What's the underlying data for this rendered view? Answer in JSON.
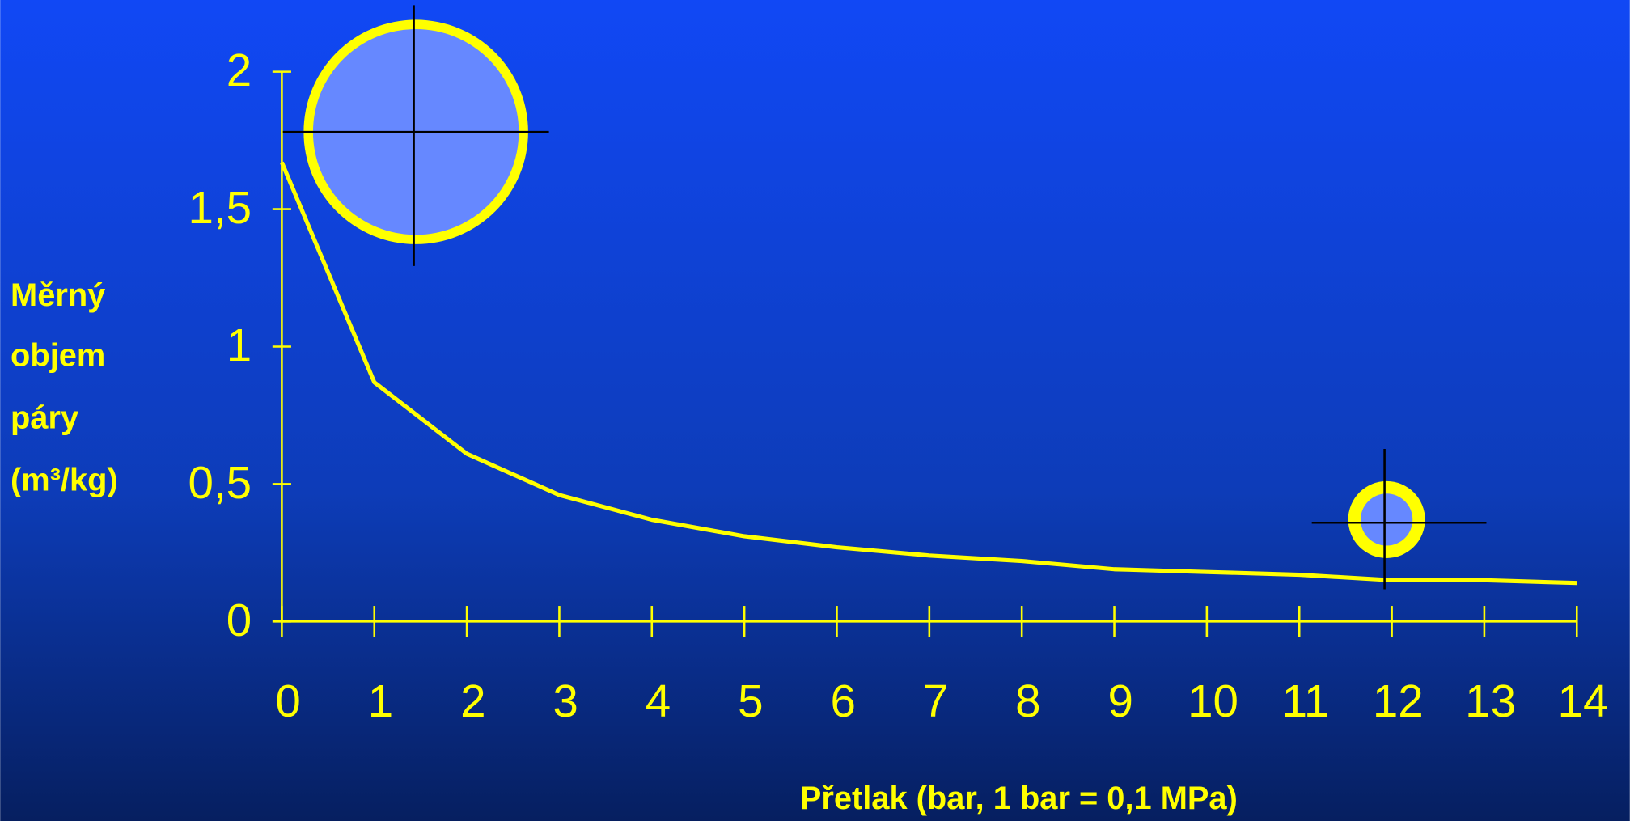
{
  "chart_data": {
    "type": "line",
    "x_label": "Přetlak (bar, 1 bar = 0,1 MPa)",
    "y_label": [
      "Měrný",
      "objem",
      "páry",
      "(m³/kg)"
    ],
    "x": [
      0,
      1,
      2,
      3,
      4,
      5,
      6,
      7,
      8,
      9,
      10,
      11,
      12,
      13,
      14
    ],
    "values": [
      1.67,
      0.87,
      0.61,
      0.46,
      0.37,
      0.31,
      0.27,
      0.24,
      0.22,
      0.19,
      0.18,
      0.17,
      0.15,
      0.15,
      0.14
    ],
    "color": "#ffff00",
    "xlim": [
      0,
      14
    ],
    "xticks": [
      0,
      1,
      2,
      3,
      4,
      5,
      6,
      7,
      8,
      9,
      10,
      11,
      12,
      13,
      14
    ],
    "ylim": [
      0,
      2
    ],
    "yticks": [
      0,
      {
        "value": 0.5,
        "label": "0,5"
      },
      1,
      {
        "value": 1.5,
        "label": "1,5"
      },
      2
    ]
  }
}
